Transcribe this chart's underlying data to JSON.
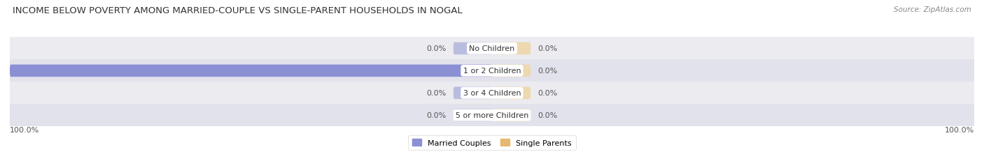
{
  "title": "INCOME BELOW POVERTY AMONG MARRIED-COUPLE VS SINGLE-PARENT HOUSEHOLDS IN NOGAL",
  "source": "Source: ZipAtlas.com",
  "categories": [
    "No Children",
    "1 or 2 Children",
    "3 or 4 Children",
    "5 or more Children"
  ],
  "married_values": [
    0.0,
    100.0,
    0.0,
    0.0
  ],
  "single_values": [
    0.0,
    0.0,
    0.0,
    0.0
  ],
  "married_color": "#8b8fd4",
  "single_color": "#e8b870",
  "married_color_light": "#b8bde0",
  "single_color_light": "#edd8b0",
  "row_bg_colors": [
    "#ebebf0",
    "#e2e2ec",
    "#ebebf0",
    "#e2e2ec"
  ],
  "title_fontsize": 9.5,
  "source_fontsize": 7.5,
  "label_fontsize": 8,
  "category_fontsize": 8,
  "legend_fontsize": 8,
  "axis_label_left": "100.0%",
  "axis_label_right": "100.0%"
}
